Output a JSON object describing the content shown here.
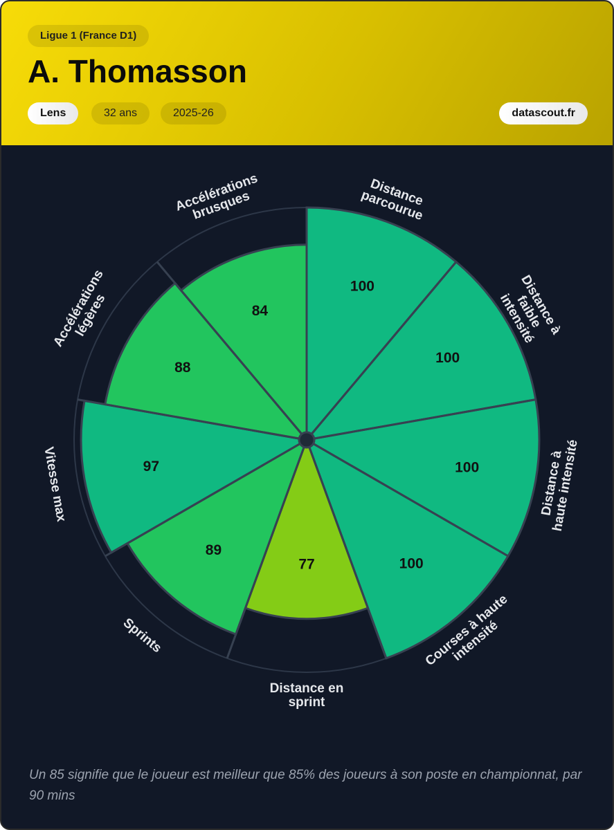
{
  "header": {
    "league": "Ligue 1 (France D1)",
    "player": "A. Thomasson",
    "team": "Lens",
    "age": "32 ans",
    "season": "2025-26",
    "source": "datascout.fr"
  },
  "chart_data": {
    "type": "pizza",
    "categories": [
      [
        "Distance",
        "parcourue"
      ],
      [
        "Distance à",
        "faible",
        "intensité"
      ],
      [
        "Distance à",
        "haute intensité"
      ],
      [
        "Courses à haute",
        "intensité"
      ],
      [
        "Distance en",
        "sprint"
      ],
      [
        "Sprints"
      ],
      [
        "Vitesse max"
      ],
      [
        "Accélérations",
        "légères"
      ],
      [
        "Accélérations",
        "brusques"
      ]
    ],
    "values": [
      100,
      100,
      100,
      100,
      77,
      89,
      97,
      88,
      84
    ],
    "colors": [
      "#10b981",
      "#10b981",
      "#10b981",
      "#10b981",
      "#84cc16",
      "#22c55e",
      "#10b981",
      "#22c55e",
      "#22c55e"
    ],
    "rlim": [
      0,
      100
    ]
  },
  "footnote": "Un 85 signifie que le joueur est meilleur que 85% des joueurs à son poste en championnat, par 90 mins"
}
